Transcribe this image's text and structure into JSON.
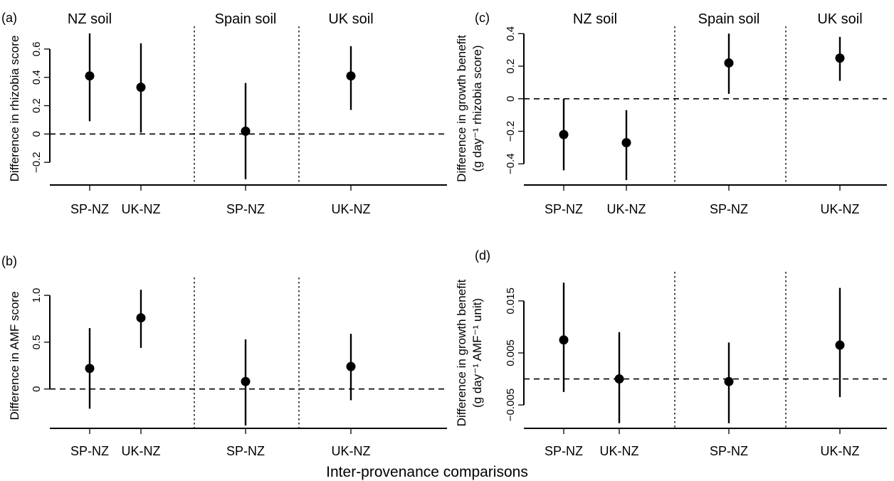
{
  "figure": {
    "x_title": "Inter-provenance comparisons"
  },
  "chart_data": [
    {
      "type": "scatter",
      "panel_label": "(a)",
      "ylabel": "Difference in rhizobia score",
      "ylabel_lines": [
        "Difference in rhizobia score"
      ],
      "groups": [
        "NZ soil",
        "Spain soil",
        "UK soil"
      ],
      "ylim": [
        -0.36,
        0.72
      ],
      "yticks": [
        -0.2,
        0,
        0.2,
        0.4,
        0.6
      ],
      "ytick_labels": [
        "−0.2",
        "0",
        "0.2",
        "0.4",
        "0.6"
      ],
      "points": [
        {
          "group": "NZ soil",
          "label": "SP-NZ",
          "x": 1,
          "y": 0.41,
          "lo": 0.09,
          "hi": 0.71
        },
        {
          "group": "NZ soil",
          "label": "UK-NZ",
          "x": 2,
          "y": 0.33,
          "lo": 0.01,
          "hi": 0.64
        },
        {
          "group": "Spain soil",
          "label": "SP-NZ",
          "x": 4,
          "y": 0.02,
          "lo": -0.32,
          "hi": 0.36
        },
        {
          "group": "UK soil",
          "label": "UK-NZ",
          "x": 6,
          "y": 0.41,
          "lo": 0.17,
          "hi": 0.62
        }
      ],
      "separators": [
        3,
        5
      ],
      "reference_line": 0
    },
    {
      "type": "scatter",
      "panel_label": "(b)",
      "ylabel": "Difference in AMF score",
      "ylabel_lines": [
        "Difference in AMF score"
      ],
      "groups": [],
      "ylim": [
        -0.42,
        1.13
      ],
      "yticks": [
        0,
        0.5,
        1.0
      ],
      "ytick_labels": [
        "0",
        "0.5",
        "1.0"
      ],
      "points": [
        {
          "group": "NZ soil",
          "label": "SP-NZ",
          "x": 1,
          "y": 0.22,
          "lo": -0.21,
          "hi": 0.65
        },
        {
          "group": "NZ soil",
          "label": "UK-NZ",
          "x": 2,
          "y": 0.76,
          "lo": 0.44,
          "hi": 1.06
        },
        {
          "group": "Spain soil",
          "label": "SP-NZ",
          "x": 4,
          "y": 0.08,
          "lo": -0.39,
          "hi": 0.53
        },
        {
          "group": "UK soil",
          "label": "UK-NZ",
          "x": 6,
          "y": 0.24,
          "lo": -0.12,
          "hi": 0.59
        }
      ],
      "separators": [
        3,
        5
      ],
      "reference_line": 0
    },
    {
      "type": "scatter",
      "panel_label": "(c)",
      "ylabel": "Difference in growth benefit (g day⁻¹ rhizobia score)",
      "ylabel_lines": [
        "Difference in growth benefit",
        "(g day⁻¹ rhizobia score)"
      ],
      "groups": [
        "NZ soil",
        "Spain soil",
        "UK soil"
      ],
      "ylim": [
        -0.53,
        0.41
      ],
      "yticks": [
        -0.4,
        -0.2,
        0,
        0.2,
        0.4
      ],
      "ytick_labels": [
        "−0.4",
        "−0.2",
        "0",
        "0.2",
        "0.4"
      ],
      "points": [
        {
          "group": "NZ soil",
          "label": "SP-NZ",
          "x": 1,
          "y": -0.22,
          "lo": -0.44,
          "hi": 0.0
        },
        {
          "group": "NZ soil",
          "label": "UK-NZ",
          "x": 2,
          "y": -0.27,
          "lo": -0.5,
          "hi": -0.07
        },
        {
          "group": "Spain soil",
          "label": "SP-NZ",
          "x": 4,
          "y": 0.22,
          "lo": 0.03,
          "hi": 0.4
        },
        {
          "group": "UK soil",
          "label": "UK-NZ",
          "x": 6,
          "y": 0.25,
          "lo": 0.11,
          "hi": 0.38
        }
      ],
      "separators": [
        3,
        5
      ],
      "reference_line": 0
    },
    {
      "type": "scatter",
      "panel_label": "(d)",
      "ylabel": "Difference in growth benefit (g day⁻¹ AMF⁻¹ unit)",
      "ylabel_lines": [
        "Difference in growth benefit",
        "(g day⁻¹ AMF⁻¹ unit)"
      ],
      "groups": [],
      "ylim": [
        -0.0095,
        0.0195
      ],
      "yticks": [
        -0.005,
        0.005,
        0.015
      ],
      "ytick_labels": [
        "−0.005",
        "0.005",
        "0.015"
      ],
      "points": [
        {
          "group": "NZ soil",
          "label": "SP-NZ",
          "x": 1,
          "y": 0.0075,
          "lo": -0.0025,
          "hi": 0.0185
        },
        {
          "group": "NZ soil",
          "label": "UK-NZ",
          "x": 2,
          "y": 0.0,
          "lo": -0.0085,
          "hi": 0.009
        },
        {
          "group": "Spain soil",
          "label": "SP-NZ",
          "x": 4,
          "y": -0.0005,
          "lo": -0.0085,
          "hi": 0.007
        },
        {
          "group": "UK soil",
          "label": "UK-NZ",
          "x": 6,
          "y": 0.0065,
          "lo": -0.0035,
          "hi": 0.0175
        }
      ],
      "separators": [
        3,
        5
      ],
      "reference_line": 0
    }
  ]
}
